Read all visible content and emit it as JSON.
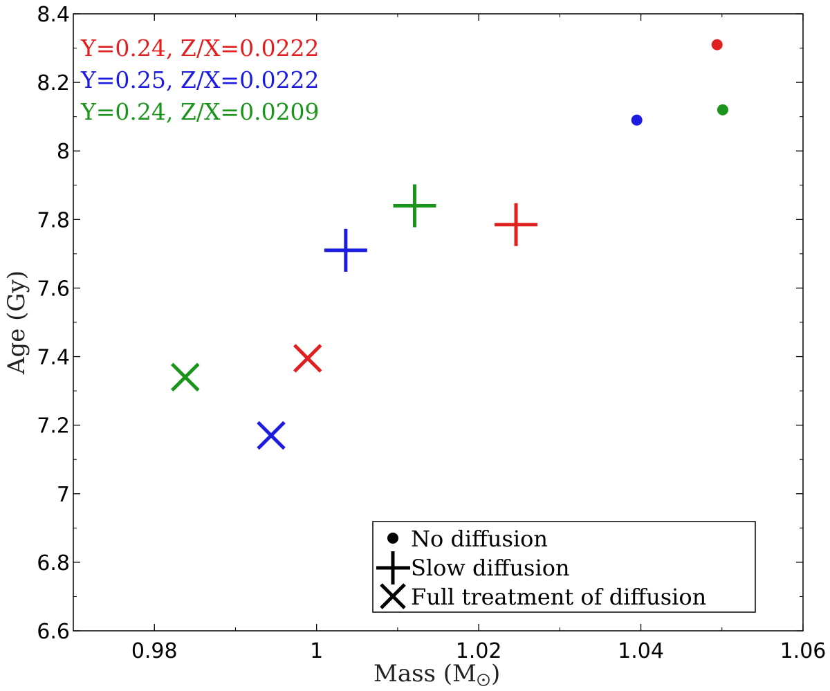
{
  "chart_data": {
    "type": "scatter",
    "xlabel": "Mass (M",
    "xlabel_suffix": ")",
    "ylabel": "Age (Gy)",
    "xlim": [
      0.97,
      1.06
    ],
    "ylim": [
      6.6,
      8.4
    ],
    "x_ticks": [
      0.98,
      1.0,
      1.02,
      1.04,
      1.06
    ],
    "x_tick_labels": [
      "0.98",
      "1",
      "1.02",
      "1.04",
      "1.06"
    ],
    "y_ticks": [
      6.6,
      6.8,
      7.0,
      7.2,
      7.4,
      7.6,
      7.8,
      8.0,
      8.2,
      8.4
    ],
    "y_tick_labels": [
      "6.6",
      "6.8",
      "7",
      "7.2",
      "7.4",
      "7.6",
      "7.8",
      "8",
      "8.2",
      "8.4"
    ],
    "grid": false,
    "annotations": [
      {
        "text": "Y=0.24, Z/X=0.0222",
        "color": "#e02020"
      },
      {
        "text": "Y=0.25, Z/X=0.0222",
        "color": "#1c1ce0"
      },
      {
        "text": "Y=0.24, Z/X=0.0209",
        "color": "#1a941a"
      }
    ],
    "legend": {
      "position": "bottom-right",
      "entries": [
        {
          "label": "No diffusion",
          "marker": "dot"
        },
        {
          "label": "Slow diffusion",
          "marker": "plus"
        },
        {
          "label": "Full treatment of diffusion",
          "marker": "cross"
        }
      ]
    },
    "series": [
      {
        "color": "#e02020",
        "points": [
          {
            "x": 1.0494,
            "y": 8.31,
            "marker": "dot"
          },
          {
            "x": 1.0246,
            "y": 7.785,
            "marker": "plus"
          },
          {
            "x": 0.9989,
            "y": 7.395,
            "marker": "cross"
          }
        ]
      },
      {
        "color": "#1c1ce0",
        "points": [
          {
            "x": 1.0395,
            "y": 8.09,
            "marker": "dot"
          },
          {
            "x": 1.0036,
            "y": 7.71,
            "marker": "plus"
          },
          {
            "x": 0.9944,
            "y": 7.17,
            "marker": "cross"
          }
        ]
      },
      {
        "color": "#1a941a",
        "points": [
          {
            "x": 1.0501,
            "y": 8.12,
            "marker": "dot"
          },
          {
            "x": 1.0121,
            "y": 7.84,
            "marker": "plus"
          },
          {
            "x": 0.9838,
            "y": 7.34,
            "marker": "cross"
          }
        ]
      }
    ]
  }
}
